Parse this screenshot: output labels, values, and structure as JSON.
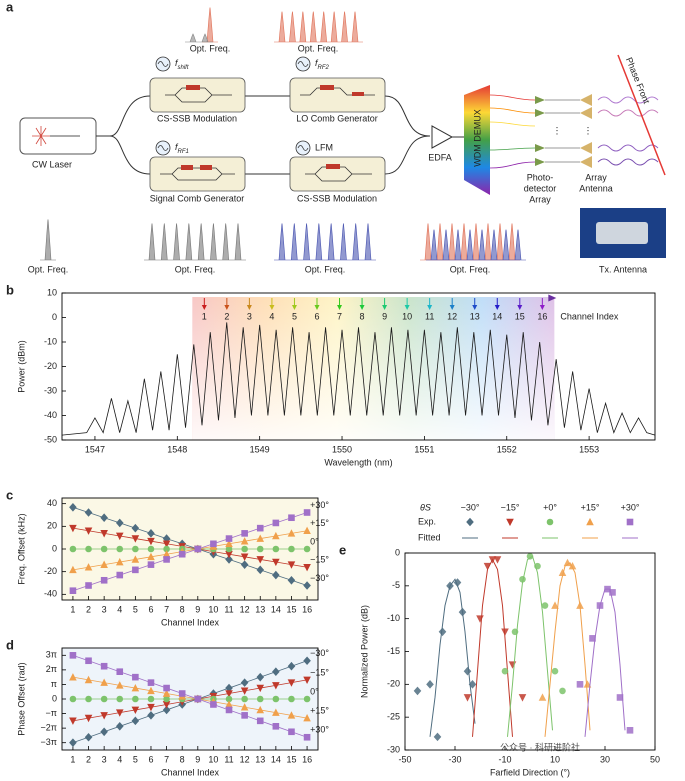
{
  "diagram": {
    "label": "a",
    "top_spectra": [
      "Opt. Freq.",
      "Opt. Freq."
    ],
    "bottom_spectra": [
      "Opt. Freq.",
      "Opt. Freq.",
      "Opt. Freq.",
      "Opt. Freq."
    ],
    "blocks": [
      {
        "label": "CS-SSB Modulation",
        "source": "f",
        "sub": "shift"
      },
      {
        "label": "LO Comb Generator",
        "source": "f",
        "sub": "RF2"
      },
      {
        "label": "Signal Comb Generator",
        "source": "f",
        "sub": "RF1"
      },
      {
        "label": "CS-SSB Modulation",
        "source": "LFM"
      }
    ],
    "laser": "CW Laser",
    "amplifier": "EDFA",
    "demux": "WDM DEMUX",
    "detector": [
      "Photo-",
      "detector",
      "Array"
    ],
    "antenna": [
      "Array",
      "Antenna"
    ],
    "phase_front": "Phase Front",
    "photo": "Tx. Antenna"
  },
  "chart_data": [
    {
      "type": "line",
      "panel": "b",
      "xlabel": "Wavelength (nm)",
      "ylabel": "Power (dBm)",
      "xlim": [
        1546.6,
        1553.8
      ],
      "ylim": [
        -50,
        10
      ],
      "xticks": [
        1547,
        1548,
        1549,
        1550,
        1551,
        1552,
        1553
      ],
      "yticks": [
        -50,
        -40,
        -30,
        -20,
        -10,
        0,
        10
      ],
      "color": "#1a1a1a",
      "channels": [
        "1",
        "2",
        "3",
        "4",
        "5",
        "6",
        "7",
        "8",
        "9",
        "10",
        "11",
        "12",
        "13",
        "14",
        "15",
        "16"
      ],
      "channel_axis_label": "Channel Index",
      "x": [
        1546.6,
        1546.9,
        1547.0,
        1547.1,
        1547.2,
        1547.3,
        1547.4,
        1547.5,
        1547.6,
        1547.7,
        1547.8,
        1547.9,
        1548.0,
        1548.1,
        1548.2,
        1548.3,
        1548.4,
        1548.5,
        1548.6,
        1548.7,
        1548.8,
        1548.9,
        1549.0,
        1549.1,
        1549.2,
        1549.3,
        1549.4,
        1549.5,
        1549.6,
        1549.7,
        1549.8,
        1549.9,
        1550.0,
        1550.1,
        1550.2,
        1550.3,
        1550.4,
        1550.5,
        1550.6,
        1550.7,
        1550.8,
        1550.9,
        1551.0,
        1551.1,
        1551.2,
        1551.3,
        1551.4,
        1551.5,
        1551.6,
        1551.7,
        1551.8,
        1551.9,
        1552.0,
        1552.1,
        1552.2,
        1552.3,
        1552.4,
        1552.5,
        1552.6,
        1552.7,
        1552.8,
        1552.9,
        1553.0,
        1553.1,
        1553.2,
        1553.3,
        1553.4,
        1553.5,
        1553.6,
        1553.7,
        1553.8
      ],
      "values": [
        -48,
        -47,
        -41,
        -47,
        -33,
        -47,
        -34,
        -47,
        -25,
        -46,
        -22,
        -46,
        -15,
        -45,
        -11,
        -44,
        -6,
        -42,
        -2,
        -41,
        -4,
        -40,
        -3,
        -40,
        -5,
        -40,
        -4,
        -40,
        -6,
        -40,
        -4,
        -40,
        -5,
        -40,
        -4,
        -40,
        -6,
        -40,
        -4,
        -40,
        -5,
        -40,
        -5,
        -40,
        -6,
        -40,
        -4,
        -40,
        -6,
        -40,
        -5,
        -40,
        -7,
        -41,
        -6,
        -42,
        -10,
        -44,
        -17,
        -45,
        -22,
        -46,
        -29,
        -47,
        -35,
        -47,
        -39,
        -47,
        -41,
        -47,
        -48
      ]
    },
    {
      "type": "line",
      "panel": "c",
      "xlabel": "Channel Index",
      "ylabel": "Freq. Offset (kHz)",
      "background": "#fbf8e6",
      "xlim": [
        0.3,
        16.7
      ],
      "ylim": [
        -45,
        45
      ],
      "xticks": [
        1,
        2,
        3,
        4,
        5,
        6,
        7,
        8,
        9,
        10,
        11,
        12,
        13,
        14,
        15,
        16
      ],
      "yticks": [
        -40,
        -20,
        0,
        20,
        40
      ],
      "x": [
        1,
        2,
        3,
        4,
        5,
        6,
        7,
        8,
        9,
        10,
        11,
        12,
        13,
        14,
        15,
        16
      ],
      "series": [
        {
          "name": "−30°",
          "color": "#4f6d80",
          "marker": "diamond",
          "values": [
            36.8,
            32.2,
            27.6,
            23,
            18.4,
            13.8,
            9.2,
            4.6,
            0,
            -4.6,
            -9.2,
            -13.8,
            -18.4,
            -23,
            -27.6,
            -32.2
          ]
        },
        {
          "name": "−15°",
          "color": "#c0392b",
          "marker": "triangle-down",
          "values": [
            18.4,
            16.1,
            13.8,
            11.5,
            9.2,
            6.9,
            4.6,
            2.3,
            0,
            -2.3,
            -4.6,
            -6.9,
            -9.2,
            -11.5,
            -13.8,
            -16.1
          ]
        },
        {
          "name": "0°",
          "color": "#7dc36b",
          "marker": "circle",
          "values": [
            0,
            0,
            0,
            0,
            0,
            0,
            0,
            0,
            0,
            0,
            0,
            0,
            0,
            0,
            0,
            0
          ]
        },
        {
          "name": "+15°",
          "color": "#f0a04b",
          "marker": "triangle-up",
          "values": [
            -18.4,
            -16.1,
            -13.8,
            -11.5,
            -9.2,
            -6.9,
            -4.6,
            -2.3,
            0,
            2.3,
            4.6,
            6.9,
            9.2,
            11.5,
            13.8,
            16.1
          ]
        },
        {
          "name": "+30°",
          "color": "#a070c8",
          "marker": "square",
          "values": [
            -36.8,
            -32.2,
            -27.6,
            -23,
            -18.4,
            -13.8,
            -9.2,
            -4.6,
            0,
            4.6,
            9.2,
            13.8,
            18.4,
            23,
            27.6,
            32.2
          ]
        }
      ]
    },
    {
      "type": "line",
      "panel": "d",
      "xlabel": "Channel Index",
      "ylabel": "Phase Offset (rad)",
      "background": "#eef4fa",
      "xlim": [
        0.3,
        16.7
      ],
      "ylim": [
        -11,
        11
      ],
      "xticks": [
        1,
        2,
        3,
        4,
        5,
        6,
        7,
        8,
        9,
        10,
        11,
        12,
        13,
        14,
        15,
        16
      ],
      "yticks": [
        {
          "value": -9.4248,
          "label": "−3π"
        },
        {
          "value": -6.2832,
          "label": "−2π"
        },
        {
          "value": -3.1416,
          "label": "−π"
        },
        0,
        {
          "value": 3.1416,
          "label": "π"
        },
        {
          "value": 6.2832,
          "label": "2π"
        },
        {
          "value": 9.4248,
          "label": "3π"
        }
      ],
      "x": [
        1,
        2,
        3,
        4,
        5,
        6,
        7,
        8,
        9,
        10,
        11,
        12,
        13,
        14,
        15,
        16
      ],
      "series": [
        {
          "name": "−30°",
          "color": "#4f6d80",
          "marker": "diamond",
          "values": [
            -9.42,
            -8.25,
            -7.07,
            -5.89,
            -4.71,
            -3.53,
            -2.36,
            -1.18,
            0,
            1.18,
            2.36,
            3.53,
            4.71,
            5.89,
            7.07,
            8.25
          ]
        },
        {
          "name": "−15°",
          "color": "#c0392b",
          "marker": "triangle-down",
          "values": [
            -4.71,
            -4.12,
            -3.53,
            -2.94,
            -2.36,
            -1.77,
            -1.18,
            -0.59,
            0,
            0.59,
            1.18,
            1.77,
            2.36,
            2.94,
            3.53,
            4.12
          ]
        },
        {
          "name": "0°",
          "color": "#7dc36b",
          "marker": "circle",
          "values": [
            0,
            0,
            0,
            0,
            0,
            0,
            0,
            0,
            0,
            0,
            0,
            0,
            0,
            0,
            0,
            0
          ]
        },
        {
          "name": "+15°",
          "color": "#f0a04b",
          "marker": "triangle-up",
          "values": [
            4.71,
            4.12,
            3.53,
            2.94,
            2.36,
            1.77,
            1.18,
            0.59,
            0,
            -0.59,
            -1.18,
            -1.77,
            -2.36,
            -2.94,
            -3.53,
            -4.12
          ]
        },
        {
          "name": "+30°",
          "color": "#a070c8",
          "marker": "square",
          "values": [
            9.42,
            8.25,
            7.07,
            5.89,
            4.71,
            3.53,
            2.36,
            1.18,
            0,
            -1.18,
            -2.36,
            -3.53,
            -4.71,
            -5.89,
            -7.07,
            -8.25
          ]
        }
      ]
    },
    {
      "type": "scatter",
      "panel": "e",
      "xlabel": "Farfield Direction (°)",
      "ylabel": "Normalized Power (dB)",
      "xlim": [
        -50,
        50
      ],
      "ylim": [
        -30,
        0
      ],
      "xticks": [
        -50,
        -30,
        -10,
        10,
        30,
        50
      ],
      "yticks": [
        -30,
        -25,
        -20,
        -15,
        -10,
        -5,
        0
      ],
      "legend_title": "θS",
      "legend_rows": [
        "Exp.",
        "Fitted"
      ],
      "series": [
        {
          "name": "−30°",
          "color": "#4f6d80",
          "marker": "diamond",
          "x": [
            -45,
            -40,
            -37,
            -35,
            -32,
            -29,
            -27,
            -25,
            -23
          ],
          "values": [
            -21,
            -20,
            -28,
            -12,
            -5,
            -4.5,
            -9,
            -18,
            -20
          ],
          "fitted": {
            "x": [
              -40,
              -38,
              -36,
              -34,
              -32,
              -30,
              -28,
              -26,
              -24,
              -22
            ],
            "values": [
              -28,
              -22,
              -14,
              -8,
              -5,
              -4,
              -6,
              -12,
              -20,
              -26
            ]
          }
        },
        {
          "name": "−15°",
          "color": "#c0392b",
          "marker": "triangle-down",
          "x": [
            -25,
            -20,
            -17,
            -15,
            -13,
            -10,
            -7,
            -3
          ],
          "values": [
            -22,
            -10,
            -2,
            -1,
            -1,
            -12,
            -17,
            -22
          ],
          "fitted": {
            "x": [
              -23,
              -21,
              -19,
              -17,
              -15,
              -13,
              -11,
              -9,
              -7
            ],
            "values": [
              -28,
              -18,
              -8,
              -2.5,
              -1,
              -2.5,
              -8,
              -18,
              -28
            ]
          }
        },
        {
          "name": "+0°",
          "color": "#7dc36b",
          "marker": "circle",
          "x": [
            -10,
            -6,
            -3,
            0,
            3,
            6,
            10,
            13
          ],
          "values": [
            -18,
            -12,
            -4,
            -0.5,
            -2,
            -8,
            -18,
            -21
          ],
          "fitted": {
            "x": [
              -9,
              -7,
              -5,
              -3,
              -1,
              1,
              3,
              5,
              7,
              9
            ],
            "values": [
              -28,
              -20,
              -11,
              -4.5,
              -1,
              -0.5,
              -3,
              -9,
              -18,
              -27
            ]
          }
        },
        {
          "name": "+15°",
          "color": "#f0a04b",
          "marker": "triangle-up",
          "x": [
            5,
            10,
            13,
            15,
            17,
            20,
            23
          ],
          "values": [
            -22,
            -8,
            -3,
            -1.5,
            -2,
            -8,
            -20
          ],
          "fitted": {
            "x": [
              6,
              8,
              10,
              12,
              14,
              16,
              18,
              20,
              22,
              24
            ],
            "values": [
              -28,
              -20,
              -12,
              -5,
              -2,
              -1.5,
              -3,
              -8,
              -17,
              -27
            ]
          }
        },
        {
          "name": "+30°",
          "color": "#a070c8",
          "marker": "square",
          "x": [
            20,
            25,
            28,
            31,
            33,
            36,
            40
          ],
          "values": [
            -20,
            -13,
            -8,
            -5.5,
            -6,
            -22,
            -27
          ],
          "fitted": {
            "x": [
              22,
              24,
              26,
              28,
              30,
              32,
              34,
              36,
              38
            ],
            "values": [
              -28,
              -20,
              -13,
              -8,
              -5.5,
              -5.5,
              -9,
              -17,
              -27
            ]
          }
        }
      ]
    }
  ],
  "watermark": "公众号 · 科研进阶社"
}
